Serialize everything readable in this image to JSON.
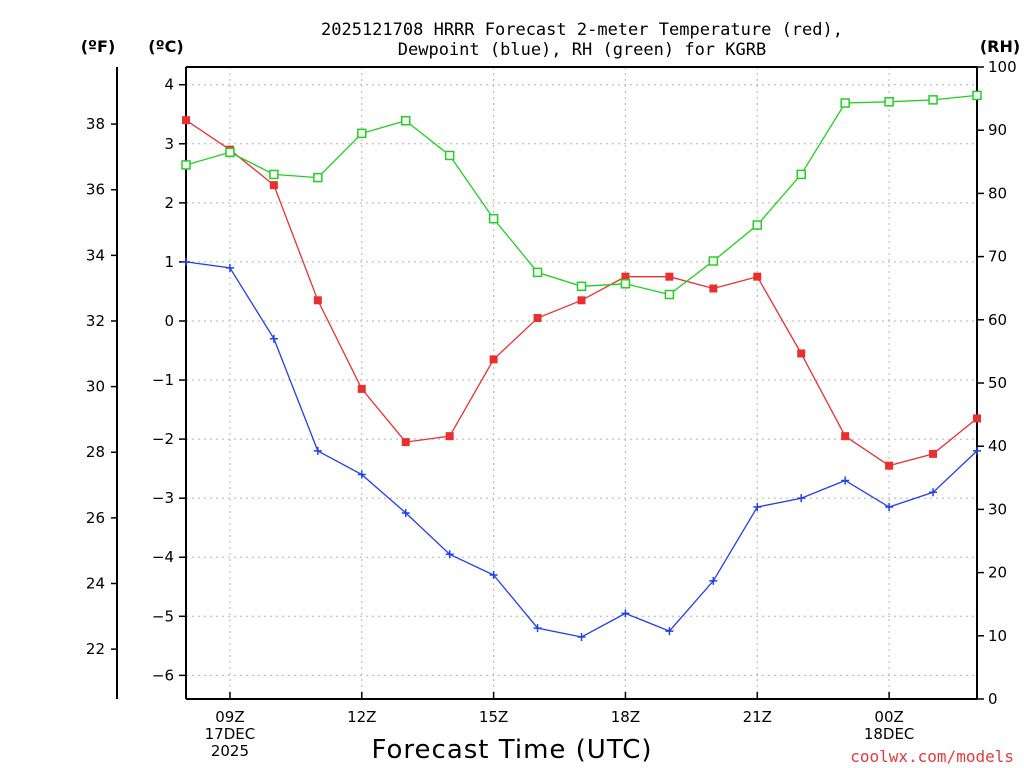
{
  "chart_data": {
    "type": "line",
    "title_line1": "2025121708 HRRR Forecast 2-meter Temperature (red),",
    "title_line2": "Dewpoint (blue), RH (green) for KGRB",
    "xlabel": "Forecast Time (UTC)",
    "credit": "coolwx.com/models",
    "unit_f": "(ºF)",
    "unit_c": "(ºC)",
    "unit_rh": "(RH)",
    "x_hours": [
      8,
      9,
      10,
      11,
      12,
      13,
      14,
      15,
      16,
      17,
      18,
      19,
      20,
      21,
      22,
      23,
      24,
      25,
      26
    ],
    "x_ticks": [
      {
        "hour": 9,
        "lines": [
          "09Z",
          "17DEC",
          "2025"
        ]
      },
      {
        "hour": 12,
        "lines": [
          "12Z"
        ]
      },
      {
        "hour": 15,
        "lines": [
          "15Z"
        ]
      },
      {
        "hour": 18,
        "lines": [
          "18Z"
        ]
      },
      {
        "hour": 21,
        "lines": [
          "21Z"
        ]
      },
      {
        "hour": 24,
        "lines": [
          "00Z",
          "18DEC"
        ]
      }
    ],
    "xlim": [
      8,
      26
    ],
    "c_axis": {
      "ylim": [
        -6.4,
        4.3
      ],
      "ticks": [
        -6,
        -5,
        -4,
        -3,
        -2,
        -1,
        0,
        1,
        2,
        3,
        4
      ]
    },
    "f_axis": {
      "ticks": [
        22,
        24,
        26,
        28,
        30,
        32,
        34,
        36,
        38
      ]
    },
    "rh_axis": {
      "ylim": [
        0,
        100
      ],
      "ticks": [
        0,
        10,
        20,
        30,
        40,
        50,
        60,
        70,
        80,
        90,
        100
      ]
    },
    "series": [
      {
        "name": "Temperature",
        "color": "#e83030",
        "marker": "filled-square",
        "axis": "c",
        "values": [
          3.4,
          2.9,
          2.3,
          0.35,
          -1.15,
          -2.05,
          -1.95,
          -0.65,
          0.05,
          0.35,
          0.75,
          0.75,
          0.55,
          0.75,
          -0.55,
          -1.95,
          -2.45,
          -2.25,
          -1.65
        ]
      },
      {
        "name": "Dewpoint",
        "color": "#2040e8",
        "marker": "plus",
        "axis": "c",
        "values": [
          1.0,
          0.9,
          -0.3,
          -2.2,
          -2.6,
          -3.25,
          -3.95,
          -4.3,
          -5.2,
          -5.35,
          -4.95,
          -5.25,
          -4.4,
          -3.15,
          -3.0,
          -2.7,
          -3.15,
          -2.9,
          -2.2
        ]
      },
      {
        "name": "RH",
        "color": "#20d020",
        "marker": "open-square",
        "axis": "rh",
        "values": [
          84.5,
          86.5,
          83.0,
          82.5,
          89.5,
          91.5,
          86.0,
          76.0,
          67.5,
          65.3,
          65.7,
          64.0,
          69.3,
          75.0,
          83.0,
          94.3,
          94.5,
          94.8,
          95.5
        ]
      }
    ]
  }
}
